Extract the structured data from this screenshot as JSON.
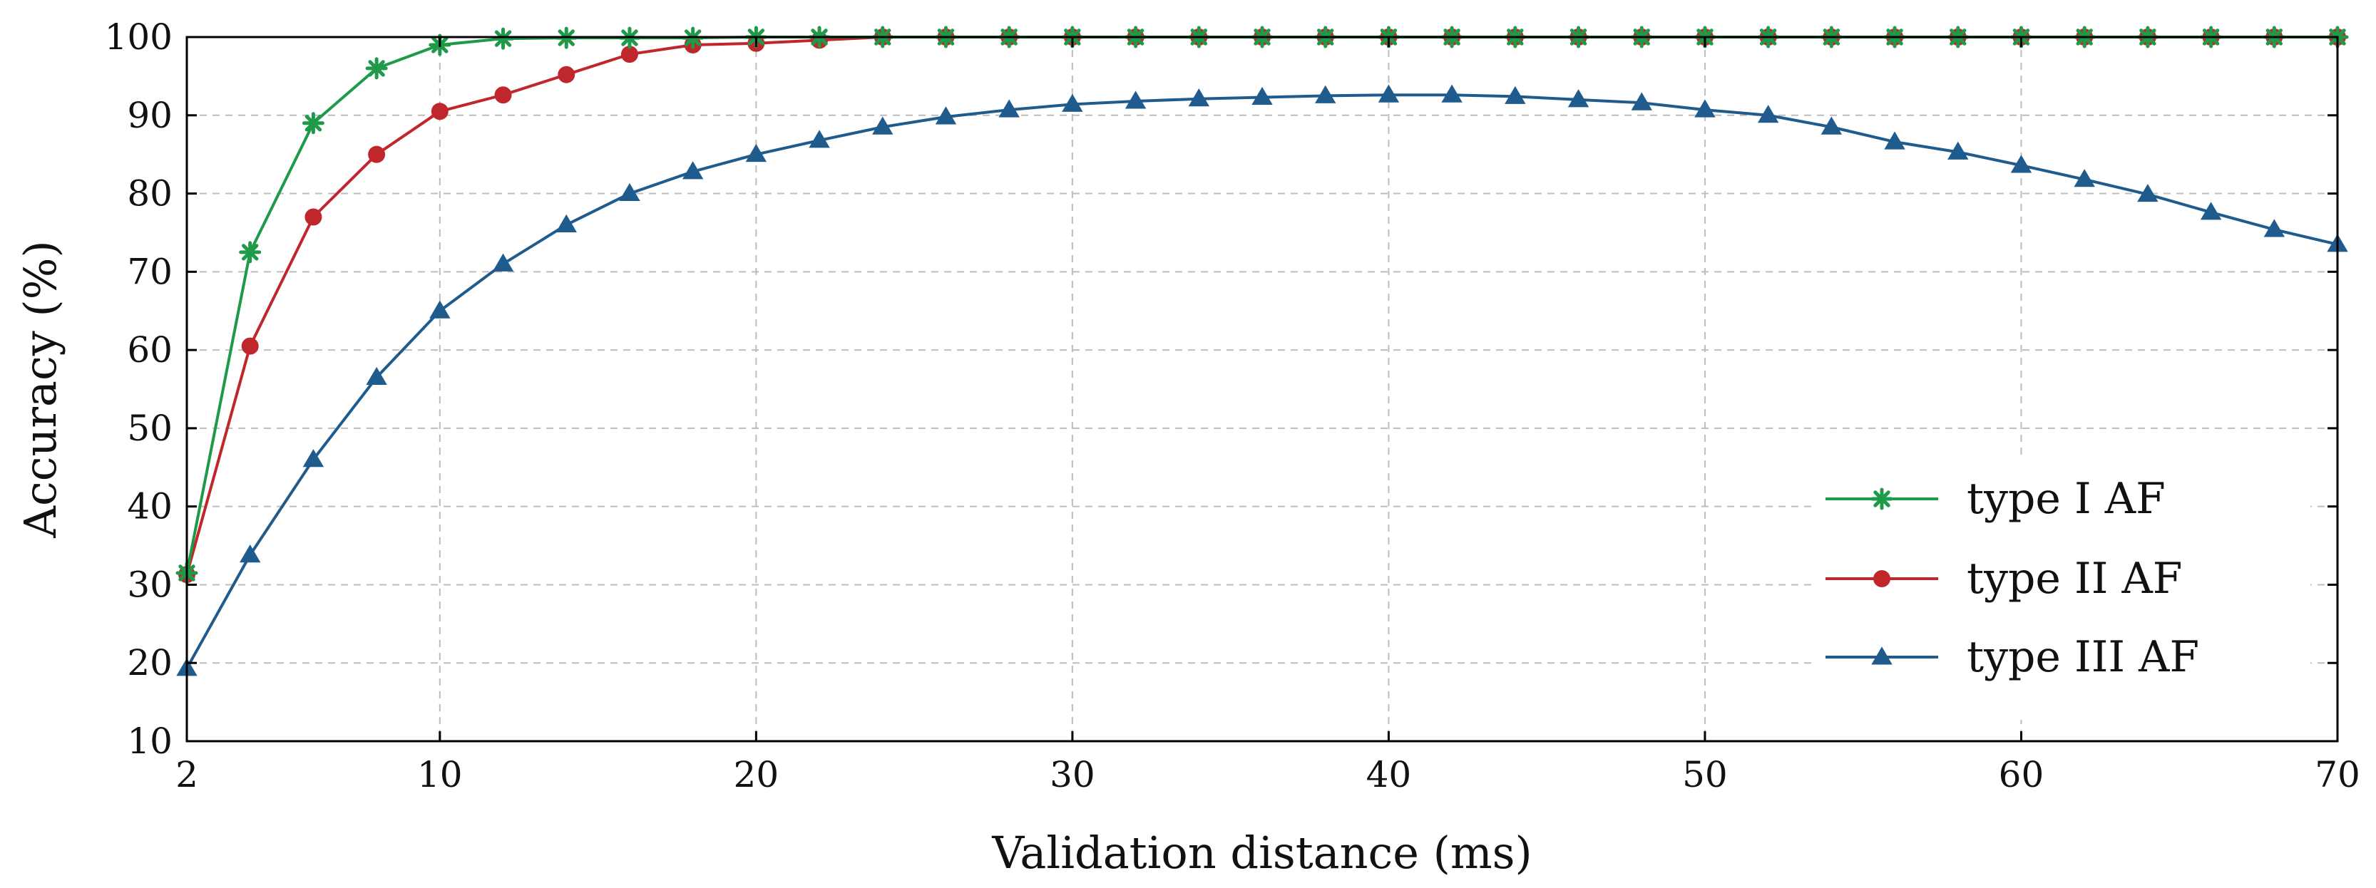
{
  "chart_data": {
    "type": "line",
    "title": "",
    "xlabel": "Validation distance (ms)",
    "ylabel": "Accuracy (%)",
    "xlim": [
      2,
      70
    ],
    "ylim": [
      10,
      100
    ],
    "xticks": [
      2,
      10,
      20,
      30,
      40,
      50,
      60,
      70
    ],
    "yticks": [
      10,
      20,
      30,
      40,
      50,
      60,
      70,
      80,
      90,
      100
    ],
    "grid": true,
    "legend_position": "bottom-right",
    "x": [
      2,
      4,
      6,
      8,
      10,
      12,
      14,
      16,
      18,
      20,
      22,
      24,
      26,
      28,
      30,
      32,
      34,
      36,
      38,
      40,
      42,
      44,
      46,
      48,
      50,
      52,
      54,
      56,
      58,
      60,
      62,
      64,
      66,
      68,
      70
    ],
    "series": [
      {
        "name": "type I AF",
        "color": "#1e9a48",
        "marker": "star",
        "values": [
          31.5,
          72.5,
          89,
          96,
          99,
          99.8,
          99.9,
          99.9,
          99.9,
          100,
          100,
          100,
          100,
          100,
          100,
          100,
          100,
          100,
          100,
          100,
          100,
          100,
          100,
          100,
          100,
          100,
          100,
          100,
          100,
          100,
          100,
          100,
          100,
          100,
          100
        ]
      },
      {
        "name": "type II AF",
        "color": "#c0272d",
        "marker": "circle",
        "values": [
          31.3,
          60.5,
          77,
          85,
          90.5,
          92.6,
          95.2,
          97.8,
          99,
          99.2,
          99.6,
          100,
          100,
          100,
          100,
          100,
          100,
          100,
          100,
          100,
          100,
          100,
          100,
          100,
          100,
          100,
          100,
          100,
          100,
          100,
          100,
          100,
          100,
          100,
          100
        ]
      },
      {
        "name": "type III AF",
        "color": "#1f5b8c",
        "marker": "triangle",
        "values": [
          19.3,
          33.8,
          46,
          56.5,
          65,
          71,
          76,
          80,
          82.8,
          85,
          86.8,
          88.5,
          89.8,
          90.7,
          91.4,
          91.8,
          92.1,
          92.3,
          92.5,
          92.6,
          92.6,
          92.4,
          92,
          91.6,
          90.7,
          90,
          88.5,
          86.6,
          85.3,
          83.6,
          81.8,
          79.9,
          77.6,
          75.4,
          73.5
        ]
      }
    ]
  }
}
